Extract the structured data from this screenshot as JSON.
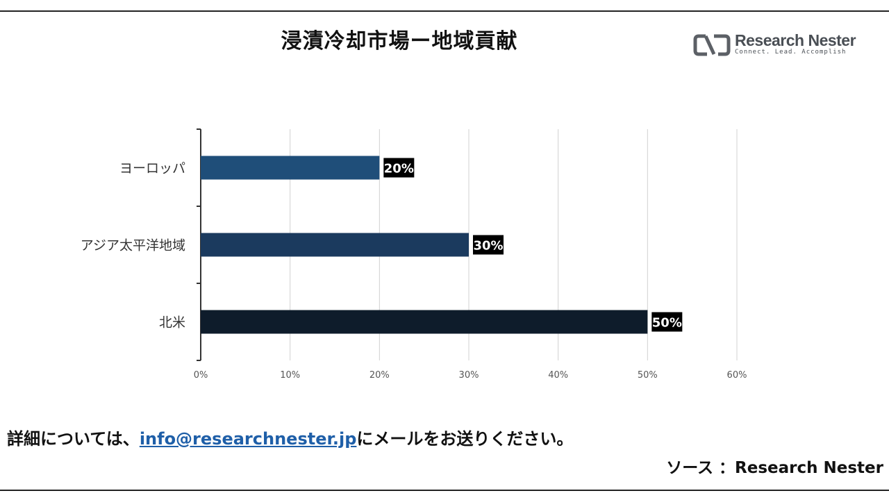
{
  "header": {
    "logo_name": "Research Nester",
    "logo_tagline": "Connect. Lead. Accomplish"
  },
  "colors": {
    "bars": [
      "#1f4e79",
      "#1b3a5e",
      "#0e1c2b"
    ],
    "label_bg": "#000000",
    "label_text": "#ffffff",
    "gridline": "#d0d0d0",
    "link": "#1f5fa8"
  },
  "chart_data": {
    "type": "bar",
    "orientation": "horizontal",
    "title": "浸漬冷却市場ー地域貢献",
    "categories": [
      "ヨーロッパ",
      "アジア太平洋地域",
      "北米"
    ],
    "values": [
      20,
      30,
      50
    ],
    "data_labels": [
      "20%",
      "30%",
      "50%"
    ],
    "xlim": [
      0,
      60
    ],
    "x_ticks": [
      0,
      10,
      20,
      30,
      40,
      50,
      60
    ],
    "x_tick_labels": [
      "0%",
      "10%",
      "20%",
      "30%",
      "40%",
      "50%",
      "60%"
    ],
    "grid": true,
    "legend": "none"
  },
  "footer": {
    "prefix": "詳細については、",
    "email": "info@researchnester.jp",
    "suffix": "にメールをお送りください。",
    "source": "ソース ：Research Nester"
  }
}
